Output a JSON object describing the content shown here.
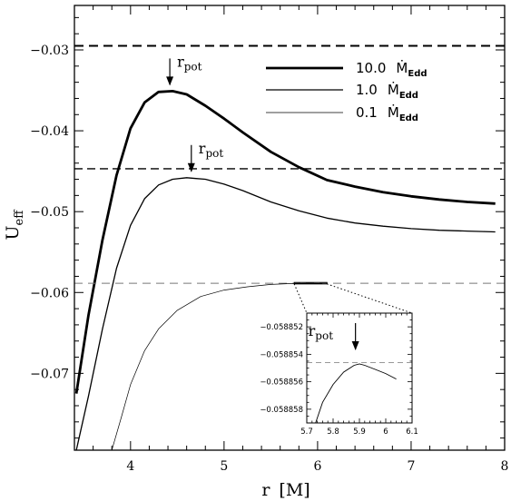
{
  "chart_data": {
    "type": "line",
    "xlabel": "r",
    "xlabel_unit": "[M]",
    "ylabel": "U",
    "ylabel_sub": "eff",
    "xlim": [
      3.4,
      8.0
    ],
    "ylim": [
      -0.0795,
      -0.0245
    ],
    "x_ticks": [
      4,
      5,
      6,
      7,
      8
    ],
    "y_ticks": [
      -0.03,
      -0.04,
      -0.05,
      -0.06,
      -0.07
    ],
    "x_tick_labels": [
      "4",
      "5",
      "6",
      "7",
      "8"
    ],
    "y_tick_labels": [
      "−0.03",
      "−0.04",
      "−0.05",
      "−0.06",
      "−0.07"
    ],
    "legend_position": "top-right",
    "series": [
      {
        "name": "10.0",
        "legend_unit": "Ṁ",
        "legend_sub": "Edd",
        "style": "thick",
        "potential_level": -0.0295,
        "x": [
          3.42,
          3.55,
          3.7,
          3.85,
          4.0,
          4.15,
          4.3,
          4.45,
          4.6,
          4.8,
          5.0,
          5.2,
          5.5,
          5.8,
          6.1,
          6.4,
          6.7,
          7.0,
          7.3,
          7.6,
          7.9
        ],
        "y": [
          -0.0725,
          -0.0628,
          -0.0535,
          -0.0455,
          -0.0397,
          -0.0365,
          -0.0352,
          -0.0351,
          -0.0355,
          -0.0369,
          -0.0385,
          -0.0402,
          -0.0426,
          -0.0445,
          -0.0461,
          -0.0469,
          -0.0476,
          -0.0481,
          -0.0485,
          -0.0488,
          -0.049
        ]
      },
      {
        "name": "1.0",
        "legend_unit": "Ṁ",
        "legend_sub": "Edd",
        "style": "medium",
        "potential_level": -0.0447,
        "x": [
          3.42,
          3.55,
          3.7,
          3.85,
          4.0,
          4.15,
          4.3,
          4.45,
          4.6,
          4.7,
          4.8,
          5.0,
          5.2,
          5.5,
          5.8,
          6.1,
          6.4,
          6.7,
          7.0,
          7.3,
          7.6,
          7.9
        ],
        "y": [
          -0.0795,
          -0.0728,
          -0.0645,
          -0.057,
          -0.0517,
          -0.0484,
          -0.0467,
          -0.046,
          -0.0458,
          -0.0459,
          -0.046,
          -0.0466,
          -0.0474,
          -0.0488,
          -0.0499,
          -0.0508,
          -0.0514,
          -0.0518,
          -0.0521,
          -0.0523,
          -0.0524,
          -0.0525
        ]
      },
      {
        "name": "0.1",
        "legend_unit": "Ṁ",
        "legend_sub": "Edd",
        "style": "thin",
        "potential_level": -0.05886,
        "x": [
          3.8,
          3.9,
          4.0,
          4.15,
          4.3,
          4.5,
          4.75,
          5.0,
          5.25,
          5.5,
          5.7,
          5.9,
          6.05
        ],
        "y": [
          -0.0795,
          -0.0755,
          -0.0714,
          -0.0672,
          -0.0645,
          -0.0622,
          -0.0605,
          -0.0597,
          -0.0593,
          -0.059,
          -0.0589,
          -0.05886,
          -0.05888
        ]
      }
    ],
    "annotations": [
      {
        "text": "r",
        "sub": "pot",
        "x": 4.42,
        "y": -0.0351
      },
      {
        "text": "r",
        "sub": "pot",
        "x": 4.65,
        "y": -0.0458
      }
    ],
    "zoom_box": {
      "x": [
        5.75,
        6.1
      ],
      "y": [
        -0.05876,
        -0.05894
      ]
    },
    "inset": {
      "xlim": [
        5.7,
        6.1
      ],
      "ylim": [
        -0.058859,
        -0.058851
      ],
      "x_ticks": [
        5.7,
        5.8,
        5.9,
        6.0,
        6.1
      ],
      "x_tick_labels": [
        "5.7",
        "5.8",
        "5.9",
        "6",
        "6.1"
      ],
      "y_ticks": [
        -0.058852,
        -0.058854,
        -0.058856,
        -0.058858
      ],
      "y_tick_labels": [
        "−0.058852",
        "−0.058854",
        "−0.058856",
        "−0.058858"
      ],
      "potential_level": -0.0588546,
      "annotation": {
        "text": "r",
        "sub": "pot",
        "x": 5.885
      },
      "curve": {
        "x": [
          5.73,
          5.76,
          5.8,
          5.84,
          5.88,
          5.9,
          5.92,
          5.96,
          6.0,
          6.04
        ],
        "y": [
          -0.0588592,
          -0.0588575,
          -0.0588562,
          -0.0588553,
          -0.0588548,
          -0.0588547,
          -0.0588548,
          -0.0588551,
          -0.0588554,
          -0.0588558
        ]
      }
    }
  }
}
